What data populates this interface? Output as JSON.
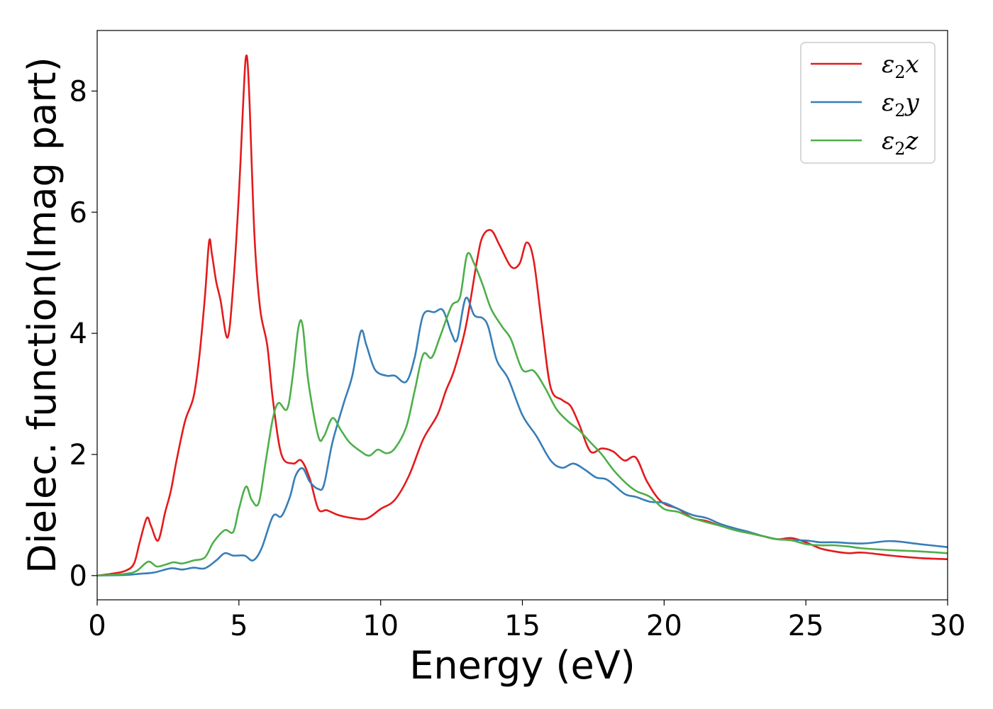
{
  "chart_data": {
    "type": "line",
    "xlabel": "Energy (eV)",
    "ylabel": "Dielec. function(Imag part)",
    "xlim": [
      0,
      30
    ],
    "ylim": [
      -0.4,
      9.0
    ],
    "x_ticks": [
      0,
      5,
      10,
      15,
      20,
      25,
      30
    ],
    "y_ticks": [
      0,
      2,
      4,
      6,
      8
    ],
    "grid": false,
    "legend_position": "top-right",
    "series": [
      {
        "name": "ε2x",
        "legend": {
          "base": "ε",
          "sub": "2",
          "tail": "x"
        },
        "color": "#e41a1c",
        "points": [
          [
            0,
            0
          ],
          [
            0.5,
            0.03
          ],
          [
            1.0,
            0.08
          ],
          [
            1.3,
            0.2
          ],
          [
            1.5,
            0.55
          ],
          [
            1.75,
            0.95
          ],
          [
            1.9,
            0.82
          ],
          [
            2.15,
            0.58
          ],
          [
            2.4,
            1.05
          ],
          [
            2.6,
            1.4
          ],
          [
            2.8,
            1.9
          ],
          [
            3.1,
            2.55
          ],
          [
            3.4,
            2.95
          ],
          [
            3.6,
            3.6
          ],
          [
            3.8,
            4.6
          ],
          [
            3.95,
            5.52
          ],
          [
            4.05,
            5.3
          ],
          [
            4.2,
            4.85
          ],
          [
            4.35,
            4.55
          ],
          [
            4.6,
            3.93
          ],
          [
            4.8,
            4.8
          ],
          [
            5.0,
            6.3
          ],
          [
            5.15,
            7.8
          ],
          [
            5.25,
            8.57
          ],
          [
            5.35,
            8.1
          ],
          [
            5.55,
            5.6
          ],
          [
            5.75,
            4.4
          ],
          [
            6.0,
            3.8
          ],
          [
            6.2,
            2.9
          ],
          [
            6.5,
            2.0
          ],
          [
            6.9,
            1.85
          ],
          [
            7.2,
            1.9
          ],
          [
            7.5,
            1.6
          ],
          [
            7.8,
            1.1
          ],
          [
            8.1,
            1.08
          ],
          [
            8.5,
            1.0
          ],
          [
            9.0,
            0.95
          ],
          [
            9.5,
            0.94
          ],
          [
            10.0,
            1.1
          ],
          [
            10.5,
            1.25
          ],
          [
            11.0,
            1.65
          ],
          [
            11.5,
            2.25
          ],
          [
            12.0,
            2.65
          ],
          [
            12.3,
            3.05
          ],
          [
            12.6,
            3.4
          ],
          [
            13.0,
            4.1
          ],
          [
            13.4,
            5.2
          ],
          [
            13.6,
            5.6
          ],
          [
            13.9,
            5.7
          ],
          [
            14.2,
            5.45
          ],
          [
            14.6,
            5.1
          ],
          [
            14.9,
            5.15
          ],
          [
            15.15,
            5.5
          ],
          [
            15.4,
            5.2
          ],
          [
            15.7,
            4.1
          ],
          [
            16.0,
            3.1
          ],
          [
            16.4,
            2.9
          ],
          [
            16.7,
            2.8
          ],
          [
            17.0,
            2.5
          ],
          [
            17.4,
            2.05
          ],
          [
            17.8,
            2.1
          ],
          [
            18.2,
            2.05
          ],
          [
            18.6,
            1.9
          ],
          [
            19.0,
            1.95
          ],
          [
            19.4,
            1.55
          ],
          [
            19.9,
            1.22
          ],
          [
            20.5,
            1.1
          ],
          [
            21.0,
            0.95
          ],
          [
            21.5,
            0.9
          ],
          [
            22.0,
            0.82
          ],
          [
            22.5,
            0.75
          ],
          [
            23.0,
            0.7
          ],
          [
            23.5,
            0.65
          ],
          [
            24.0,
            0.6
          ],
          [
            24.5,
            0.62
          ],
          [
            25.0,
            0.55
          ],
          [
            25.5,
            0.45
          ],
          [
            26.0,
            0.4
          ],
          [
            26.5,
            0.37
          ],
          [
            27.0,
            0.38
          ],
          [
            28.0,
            0.33
          ],
          [
            29.0,
            0.29
          ],
          [
            30.0,
            0.27
          ]
        ]
      },
      {
        "name": "ε2y",
        "legend": {
          "base": "ε",
          "sub": "2",
          "tail": "y"
        },
        "color": "#377eb8",
        "points": [
          [
            0,
            0
          ],
          [
            1.0,
            0.01
          ],
          [
            1.5,
            0.03
          ],
          [
            2.0,
            0.05
          ],
          [
            2.6,
            0.12
          ],
          [
            3.0,
            0.1
          ],
          [
            3.4,
            0.13
          ],
          [
            3.8,
            0.12
          ],
          [
            4.2,
            0.25
          ],
          [
            4.5,
            0.37
          ],
          [
            4.8,
            0.33
          ],
          [
            5.2,
            0.33
          ],
          [
            5.5,
            0.25
          ],
          [
            5.8,
            0.45
          ],
          [
            6.2,
            0.98
          ],
          [
            6.5,
            0.98
          ],
          [
            6.8,
            1.3
          ],
          [
            7.0,
            1.65
          ],
          [
            7.25,
            1.77
          ],
          [
            7.5,
            1.55
          ],
          [
            7.8,
            1.43
          ],
          [
            8.0,
            1.5
          ],
          [
            8.3,
            2.2
          ],
          [
            8.7,
            2.85
          ],
          [
            9.0,
            3.3
          ],
          [
            9.3,
            4.03
          ],
          [
            9.5,
            3.8
          ],
          [
            9.8,
            3.4
          ],
          [
            10.2,
            3.3
          ],
          [
            10.5,
            3.3
          ],
          [
            10.9,
            3.2
          ],
          [
            11.2,
            3.6
          ],
          [
            11.5,
            4.3
          ],
          [
            11.9,
            4.35
          ],
          [
            12.2,
            4.38
          ],
          [
            12.5,
            4.0
          ],
          [
            12.7,
            3.9
          ],
          [
            13.0,
            4.58
          ],
          [
            13.3,
            4.3
          ],
          [
            13.6,
            4.25
          ],
          [
            13.8,
            4.1
          ],
          [
            14.1,
            3.55
          ],
          [
            14.5,
            3.25
          ],
          [
            15.0,
            2.65
          ],
          [
            15.5,
            2.3
          ],
          [
            16.0,
            1.9
          ],
          [
            16.4,
            1.78
          ],
          [
            16.8,
            1.85
          ],
          [
            17.2,
            1.75
          ],
          [
            17.6,
            1.62
          ],
          [
            18.0,
            1.58
          ],
          [
            18.6,
            1.35
          ],
          [
            19.0,
            1.3
          ],
          [
            19.5,
            1.22
          ],
          [
            20.0,
            1.2
          ],
          [
            20.5,
            1.1
          ],
          [
            21.0,
            1.0
          ],
          [
            21.5,
            0.95
          ],
          [
            22.0,
            0.85
          ],
          [
            22.5,
            0.78
          ],
          [
            23.0,
            0.72
          ],
          [
            23.5,
            0.65
          ],
          [
            24.0,
            0.6
          ],
          [
            25.0,
            0.58
          ],
          [
            25.5,
            0.55
          ],
          [
            26.0,
            0.55
          ],
          [
            27.0,
            0.53
          ],
          [
            28.0,
            0.57
          ],
          [
            29.0,
            0.52
          ],
          [
            30.0,
            0.47
          ]
        ]
      },
      {
        "name": "ε2z",
        "legend": {
          "base": "ε",
          "sub": "2",
          "tail": "z"
        },
        "color": "#4daf4a",
        "points": [
          [
            0,
            0
          ],
          [
            1.0,
            0.03
          ],
          [
            1.4,
            0.08
          ],
          [
            1.8,
            0.23
          ],
          [
            2.1,
            0.15
          ],
          [
            2.4,
            0.18
          ],
          [
            2.7,
            0.22
          ],
          [
            3.0,
            0.2
          ],
          [
            3.4,
            0.25
          ],
          [
            3.8,
            0.3
          ],
          [
            4.1,
            0.55
          ],
          [
            4.5,
            0.75
          ],
          [
            4.8,
            0.72
          ],
          [
            5.0,
            1.1
          ],
          [
            5.25,
            1.47
          ],
          [
            5.45,
            1.25
          ],
          [
            5.7,
            1.2
          ],
          [
            5.95,
            1.9
          ],
          [
            6.2,
            2.6
          ],
          [
            6.4,
            2.85
          ],
          [
            6.7,
            2.75
          ],
          [
            6.9,
            3.3
          ],
          [
            7.1,
            4.1
          ],
          [
            7.25,
            4.12
          ],
          [
            7.45,
            3.2
          ],
          [
            7.8,
            2.3
          ],
          [
            8.0,
            2.3
          ],
          [
            8.3,
            2.6
          ],
          [
            8.6,
            2.4
          ],
          [
            8.9,
            2.2
          ],
          [
            9.3,
            2.05
          ],
          [
            9.6,
            1.98
          ],
          [
            9.9,
            2.08
          ],
          [
            10.2,
            2.02
          ],
          [
            10.5,
            2.1
          ],
          [
            10.9,
            2.45
          ],
          [
            11.2,
            3.05
          ],
          [
            11.5,
            3.65
          ],
          [
            11.8,
            3.6
          ],
          [
            12.1,
            3.95
          ],
          [
            12.5,
            4.45
          ],
          [
            12.8,
            4.6
          ],
          [
            13.05,
            5.3
          ],
          [
            13.3,
            5.15
          ],
          [
            13.6,
            4.8
          ],
          [
            13.9,
            4.4
          ],
          [
            14.3,
            4.1
          ],
          [
            14.6,
            3.9
          ],
          [
            15.0,
            3.4
          ],
          [
            15.4,
            3.38
          ],
          [
            15.8,
            3.1
          ],
          [
            16.2,
            2.75
          ],
          [
            16.6,
            2.55
          ],
          [
            17.0,
            2.4
          ],
          [
            17.4,
            2.2
          ],
          [
            17.8,
            2.0
          ],
          [
            18.2,
            1.75
          ],
          [
            18.6,
            1.55
          ],
          [
            19.0,
            1.4
          ],
          [
            19.5,
            1.3
          ],
          [
            20.0,
            1.1
          ],
          [
            20.5,
            1.05
          ],
          [
            21.0,
            0.95
          ],
          [
            21.5,
            0.88
          ],
          [
            22.0,
            0.82
          ],
          [
            22.5,
            0.75
          ],
          [
            23.0,
            0.7
          ],
          [
            23.5,
            0.65
          ],
          [
            24.0,
            0.6
          ],
          [
            24.5,
            0.58
          ],
          [
            25.0,
            0.52
          ],
          [
            25.5,
            0.5
          ],
          [
            26.0,
            0.5
          ],
          [
            26.5,
            0.48
          ],
          [
            27.0,
            0.45
          ],
          [
            28.0,
            0.42
          ],
          [
            29.0,
            0.4
          ],
          [
            30.0,
            0.37
          ]
        ]
      }
    ]
  }
}
